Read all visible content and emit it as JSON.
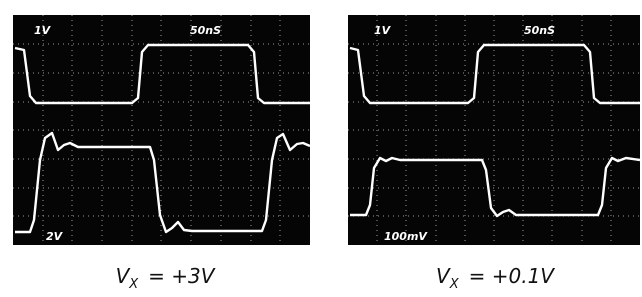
{
  "panels": [
    {
      "labels": {
        "top_left": "1V",
        "top_right": "50nS",
        "bottom_left": "2V"
      },
      "caption": {
        "symbol": "V",
        "subscript": "X",
        "relation": "= +3V"
      }
    },
    {
      "labels": {
        "top_left": "1V",
        "top_right": "50nS",
        "bottom_left": "100mV"
      },
      "caption": {
        "symbol": "V",
        "subscript": "X",
        "relation": "= +0.1V"
      }
    }
  ]
}
